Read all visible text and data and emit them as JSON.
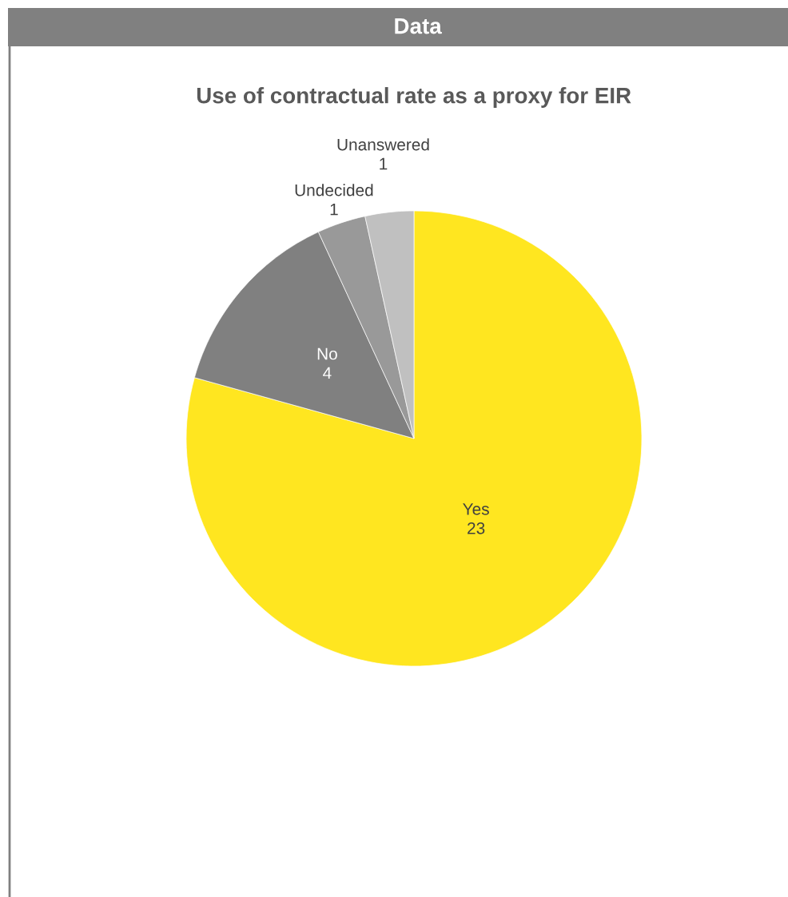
{
  "chart_data": {
    "type": "pie",
    "title": "Use of contractual rate as a proxy for EIR",
    "annotations": [
      "Data"
    ],
    "categories": [
      "Yes",
      "No",
      "Undecided",
      "Unanswered"
    ],
    "values": [
      23,
      4,
      1,
      1
    ],
    "colors": [
      "#ffe620",
      "#808080",
      "#999999",
      "#c0c0c0"
    ],
    "data_labels": true,
    "legend": false
  }
}
